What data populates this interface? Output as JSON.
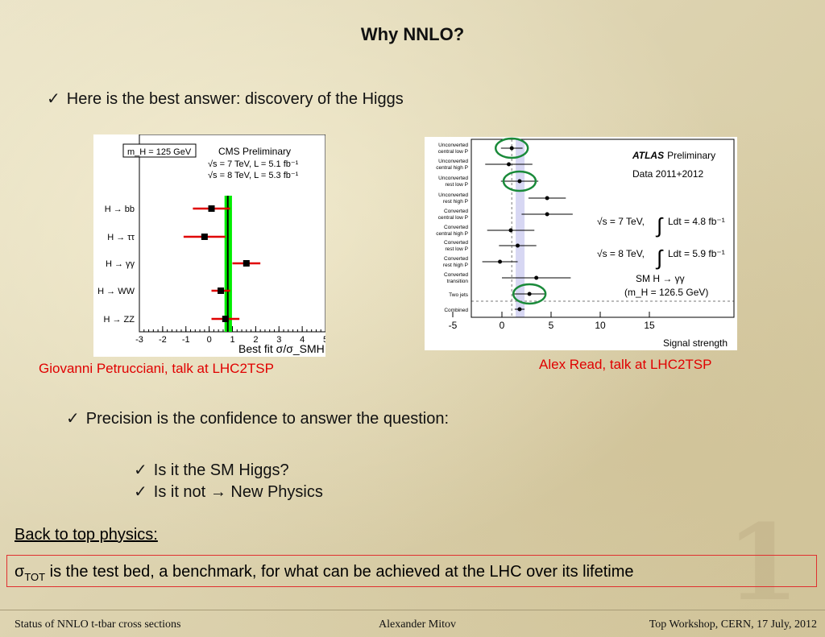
{
  "slide": {
    "title": "Why NNLO?",
    "bullet1": "Here is the best answer: discovery of the Higgs",
    "bullet2": "Precision is the confidence to answer the question:",
    "sub1": "Is it the SM Higgs?",
    "sub2_a": "Is it not",
    "sub2_arrow": "→",
    "sub2_b": "New Physics",
    "back_heading": "Back to top physics:",
    "tot_symbol": "σ",
    "tot_subscript": "TOT",
    "tot_text": " is the test bed, a benchmark, for what can be achieved at the LHC over its lifetime",
    "watermark": "1",
    "check_glyph": "✓"
  },
  "captions": {
    "left": "Giovanni Petrucciani, talk at LHC2TSP",
    "right": "Alex Read, talk at LHC2TSP"
  },
  "footer": {
    "left": "Status of NNLO t-tbar cross sections",
    "center": "Alexander Mitov",
    "right": "Top Workshop, CERN, 17 July, 2012"
  },
  "colors": {
    "caption_red": "#e00000",
    "cms_band": "#00ee00",
    "cms_points": "#000000",
    "cms_errors": "#e00000",
    "atlas_band": "#8c8cdc",
    "atlas_circles": "#1a8a3a"
  },
  "chart_data": [
    {
      "type": "scatter",
      "title": "CMS Preliminary",
      "mass_box": "m_H = 125 GeV",
      "legend_lines": [
        "√s = 7 TeV, L = 5.1 fb⁻¹",
        "√s = 8 TeV, L = 5.3 fb⁻¹"
      ],
      "xlabel": "Best fit σ/σ_SMH",
      "xlim": [
        -3,
        5
      ],
      "xticks": [
        "-3",
        "-2",
        "-1",
        "0",
        "1",
        "2",
        "3",
        "4",
        "5"
      ],
      "categories": [
        "H → bb",
        "H → ττ",
        "H → γγ",
        "H → WW",
        "H → ZZ"
      ],
      "values": [
        0.1,
        -0.2,
        1.6,
        0.5,
        0.7
      ],
      "errors_low": [
        0.8,
        0.9,
        0.6,
        0.4,
        0.6
      ],
      "errors_high": [
        0.8,
        0.9,
        0.6,
        0.4,
        0.6
      ],
      "combined": {
        "value": 0.8,
        "band": [
          0.66,
          0.98
        ],
        "line": 0.8
      },
      "legend": "top-right"
    },
    {
      "type": "scatter",
      "title_bold": "ATLAS",
      "title_rest": "Preliminary",
      "subtitle": "Data 2011+2012",
      "legend_lines": [
        {
          "energy": "√s = 7 TeV,",
          "lumi": "Ldt = 4.8 fb⁻¹"
        },
        {
          "energy": "√s = 8 TeV,",
          "lumi": "Ldt = 5.9 fb⁻¹"
        }
      ],
      "process": "SM H → γγ",
      "mass": "(m_H = 126.5 GeV)",
      "xlabel": "Signal strength",
      "xlim": [
        -7,
        18
      ],
      "xticks": [
        "-5",
        "0",
        "5",
        "10",
        "15"
      ],
      "categories": [
        "Unconverted central low P_Tt",
        "Unconverted central high P_Tt",
        "Unconverted rest low P_Tt",
        "Unconverted rest high P_Tt",
        "Converted central low P_Tt",
        "Converted central high P_Tt",
        "Converted rest low P_Tt",
        "Converted rest high P_Tt",
        "Converted transition",
        "Two jets",
        "Combined"
      ],
      "values": [
        1.0,
        0.7,
        1.8,
        4.6,
        4.6,
        0.9,
        1.6,
        -0.2,
        3.5,
        2.8,
        1.8
      ],
      "errors_low": [
        1.1,
        2.4,
        1.9,
        1.9,
        2.6,
        2.4,
        1.9,
        1.8,
        3.5,
        1.7,
        0.5
      ],
      "errors_high": [
        1.1,
        2.4,
        1.9,
        1.9,
        2.6,
        2.4,
        1.9,
        1.8,
        3.5,
        1.7,
        0.5
      ],
      "highlighted": [
        0,
        2,
        9
      ],
      "combined_band": [
        1.4,
        2.3
      ],
      "reference_line": 1,
      "legend": "top-right"
    }
  ]
}
